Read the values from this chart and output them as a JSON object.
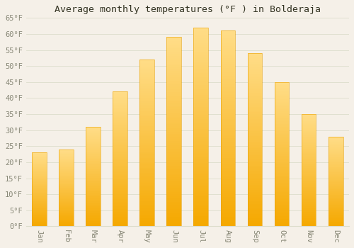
{
  "title": "Average monthly temperatures (°F ) in Bolderaja",
  "months": [
    "Jan",
    "Feb",
    "Mar",
    "Apr",
    "May",
    "Jun",
    "Jul",
    "Aug",
    "Sep",
    "Oct",
    "Nov",
    "Dec"
  ],
  "values": [
    23,
    24,
    31,
    42,
    52,
    59,
    62,
    61,
    54,
    45,
    35,
    28
  ],
  "bar_color_top": "#FFDD88",
  "bar_color_bottom": "#F5A800",
  "background_color": "#F5F0E8",
  "plot_bg_color": "#F5F0E8",
  "grid_color": "#DDDDCC",
  "ylim": [
    0,
    65
  ],
  "yticks": [
    0,
    5,
    10,
    15,
    20,
    25,
    30,
    35,
    40,
    45,
    50,
    55,
    60,
    65
  ],
  "title_fontsize": 9.5,
  "tick_fontsize": 7.5,
  "tick_color": "#888877",
  "title_color": "#333322",
  "font_family": "monospace",
  "bar_width": 0.55
}
